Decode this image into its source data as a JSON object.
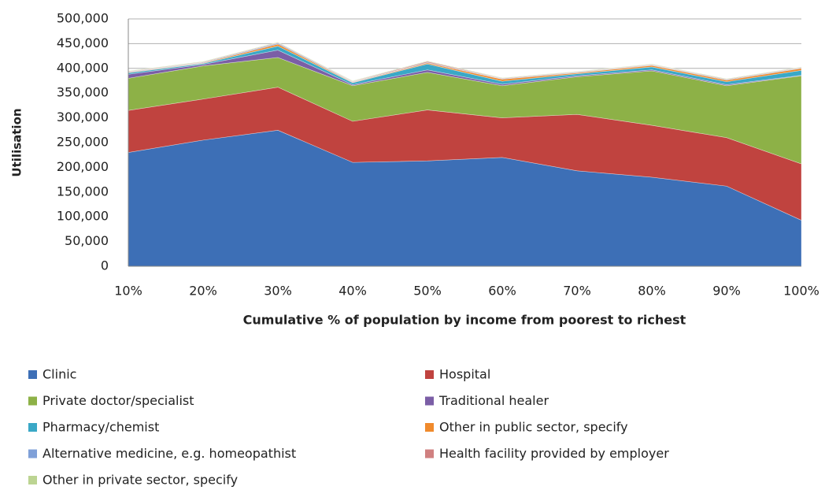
{
  "chart_data": {
    "type": "area",
    "stacked": true,
    "y_label": "Utilisation",
    "x_label": "Cumulative % of population by income from poorest to richest",
    "categories": [
      "10%",
      "20%",
      "30%",
      "40%",
      "50%",
      "60%",
      "70%",
      "80%",
      "90%",
      "100%"
    ],
    "ylim": [
      0,
      500000
    ],
    "yticks": [
      0,
      {
        "value": 50000,
        "label": "50,000"
      },
      {
        "value": 100000,
        "label": "100,000"
      },
      {
        "value": 150000,
        "label": "150,000"
      },
      {
        "value": 200000,
        "label": "200,000"
      },
      {
        "value": 250000,
        "label": "250,000"
      },
      {
        "value": 300000,
        "label": "300,000"
      },
      {
        "value": 350000,
        "label": "350,000"
      },
      {
        "value": 400000,
        "label": "400,000"
      },
      {
        "value": 450000,
        "label": "450,000"
      },
      {
        "value": 500000,
        "label": "500,000"
      }
    ],
    "grid": true,
    "legend": "bottom",
    "series": [
      {
        "name": "Clinic",
        "color": "#3d6fb6",
        "values": [
          230000,
          255000,
          275000,
          210000,
          213000,
          220000,
          193000,
          180000,
          162000,
          93000
        ]
      },
      {
        "name": "Hospital",
        "color": "#c0433f",
        "values": [
          85000,
          83000,
          87000,
          83000,
          103000,
          80000,
          114000,
          105000,
          98000,
          114000
        ]
      },
      {
        "name": "Private doctor/specialist",
        "color": "#8db147",
        "values": [
          65000,
          67000,
          60000,
          72000,
          76000,
          65000,
          76000,
          110000,
          105000,
          178000
        ]
      },
      {
        "name": "Traditional healer",
        "color": "#7b5ea6",
        "values": [
          8000,
          3000,
          15000,
          2000,
          5000,
          3000,
          2000,
          2000,
          2000,
          1000
        ]
      },
      {
        "name": "Pharmacy/chemist",
        "color": "#3aa8c6",
        "values": [
          3000,
          2000,
          8000,
          4000,
          12000,
          6000,
          4000,
          6000,
          6000,
          10000
        ]
      },
      {
        "name": "Other in public sector, specify",
        "color": "#f08a2c",
        "values": [
          1000,
          1000,
          4000,
          1000,
          2000,
          4000,
          2000,
          3000,
          3000,
          4000
        ]
      },
      {
        "name": "Alternative medicine, e.g. homeopathist",
        "color": "#7fa0d8",
        "values": [
          1000,
          1000,
          2000,
          1000,
          1000,
          1000,
          1000,
          1000,
          1000,
          1000
        ]
      },
      {
        "name": "Health facility provided by employer",
        "color": "#d08080",
        "values": [
          1000,
          1000,
          1000,
          1000,
          2000,
          1000,
          1000,
          1000,
          1000,
          1000
        ]
      },
      {
        "name": "Other in private sector, specify",
        "color": "#bcd492",
        "values": [
          1000,
          1000,
          1000,
          1000,
          1000,
          1000,
          1000,
          1000,
          1000,
          1000
        ]
      }
    ]
  }
}
